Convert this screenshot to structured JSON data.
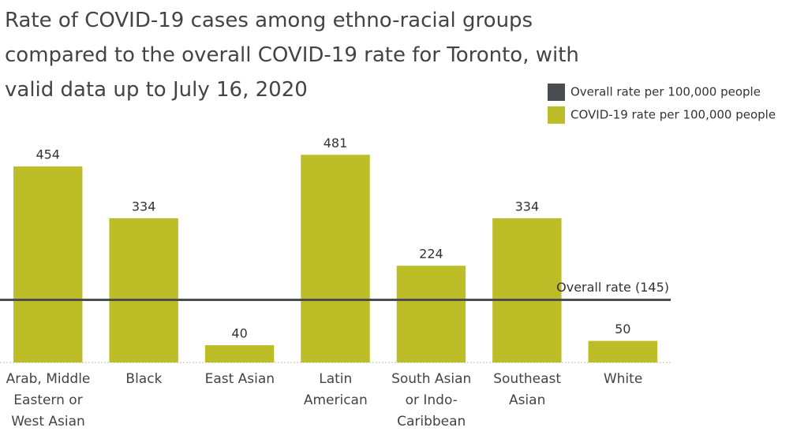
{
  "chart_data": {
    "type": "bar",
    "title": "Rate of COVID-19 cases among ethno-racial groups compared to the overall COVID-19 rate for Toronto, with valid data up to July 16, 2020",
    "categories": [
      "Arab, Middle Eastern or West Asian",
      "Black",
      "East Asian",
      "Latin American",
      "South Asian or Indo-Caribbean",
      "Southeast Asian",
      "White"
    ],
    "series": [
      {
        "name": "COVID-19 rate per 100,000 people",
        "color": "#bdbd27",
        "values": [
          454,
          334,
          40,
          481,
          224,
          334,
          50
        ]
      }
    ],
    "reference_line": {
      "name": "Overall rate per 100,000 people",
      "color": "#4a4d50",
      "value": 145,
      "label": "Overall rate (145)"
    },
    "ylim": [
      0,
      500
    ]
  }
}
